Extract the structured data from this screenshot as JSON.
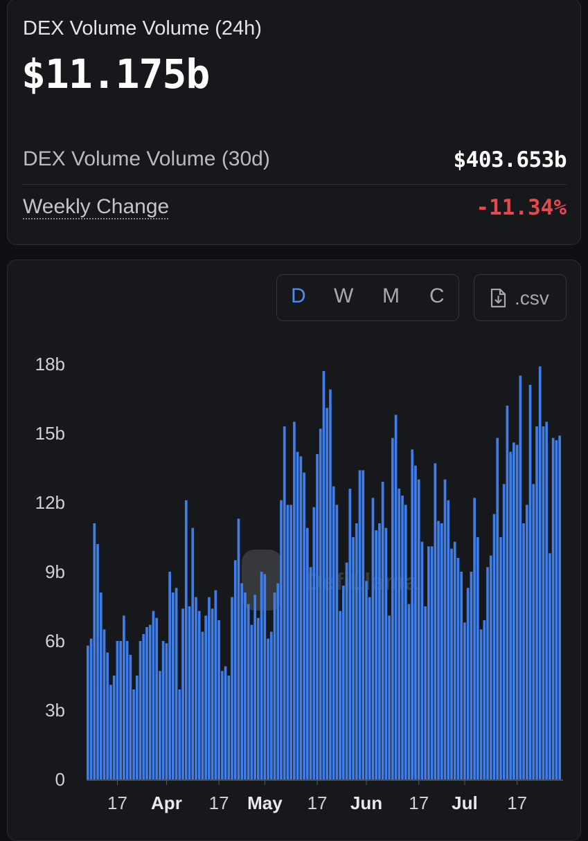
{
  "summary": {
    "vol24_label": "DEX Volume Volume (24h)",
    "vol24_value": "$11.175b",
    "vol30_label": "DEX Volume Volume (30d)",
    "vol30_value": "$403.653b",
    "weekly_label": "Weekly Change",
    "weekly_value": "-11.34%"
  },
  "controls": {
    "intervals": [
      "D",
      "W",
      "M",
      "C"
    ],
    "active_interval": "D",
    "csv_label": ".csv"
  },
  "watermark": "DefiLlama",
  "colors": {
    "bar": "#3f7ee8",
    "negative": "#e5484d",
    "active": "#4d8cf4"
  },
  "chart_data": {
    "type": "bar",
    "ylim": [
      0,
      18
    ],
    "y_ticks": [
      "0",
      "3b",
      "6b",
      "9b",
      "12b",
      "15b",
      "18b"
    ],
    "x_ticks": [
      {
        "label": "17",
        "index": 9,
        "bold": false
      },
      {
        "label": "Apr",
        "index": 24,
        "bold": true
      },
      {
        "label": "17",
        "index": 40,
        "bold": false
      },
      {
        "label": "May",
        "index": 54,
        "bold": true
      },
      {
        "label": "17",
        "index": 70,
        "bold": false
      },
      {
        "label": "Jun",
        "index": 85,
        "bold": true
      },
      {
        "label": "17",
        "index": 101,
        "bold": false
      },
      {
        "label": "Jul",
        "index": 115,
        "bold": true
      },
      {
        "label": "17",
        "index": 131,
        "bold": false
      }
    ],
    "unit": "b",
    "values": [
      5.8,
      6.1,
      11.1,
      10.2,
      8.1,
      6.5,
      5.5,
      4.1,
      4.5,
      6.0,
      6.0,
      7.1,
      6.0,
      5.4,
      3.9,
      4.5,
      6.0,
      6.3,
      6.6,
      6.7,
      7.3,
      7.0,
      4.7,
      6.0,
      5.9,
      9.0,
      8.1,
      8.3,
      3.9,
      7.4,
      12.1,
      7.5,
      10.9,
      7.9,
      7.3,
      6.4,
      7.1,
      7.9,
      7.4,
      8.2,
      6.9,
      4.7,
      4.9,
      4.5,
      7.9,
      9.5,
      11.3,
      8.5,
      8.1,
      7.6,
      6.7,
      8.0,
      7.0,
      9.0,
      8.9,
      6.1,
      6.4,
      8.1,
      8.5,
      12.1,
      15.3,
      11.9,
      11.9,
      15.5,
      14.2,
      14.0,
      13.3,
      10.9,
      9.2,
      11.8,
      14.1,
      15.2,
      17.7,
      16.1,
      16.9,
      12.7,
      11.9,
      7.3,
      8.4,
      9.4,
      12.6,
      10.5,
      11.1,
      13.4,
      13.4,
      8.6,
      7.9,
      12.2,
      10.8,
      11.1,
      12.9,
      10.9,
      7.1,
      14.8,
      15.8,
      12.6,
      12.3,
      11.9,
      7.6,
      14.3,
      13.6,
      13.0,
      10.3,
      7.5,
      10.1,
      10.1,
      13.7,
      11.2,
      11.1,
      13.0,
      12.1,
      10.0,
      10.3,
      9.6,
      9.0,
      6.8,
      8.3,
      9.0,
      12.2,
      10.5,
      6.5,
      6.9,
      9.2,
      9.7,
      11.5,
      14.8,
      10.5,
      12.8,
      16.2,
      14.2,
      14.6,
      14.5,
      17.5,
      11.1,
      11.9,
      17.1,
      12.8,
      15.3,
      17.9,
      15.3,
      15.5,
      9.8,
      14.8,
      14.7,
      14.9
    ]
  }
}
